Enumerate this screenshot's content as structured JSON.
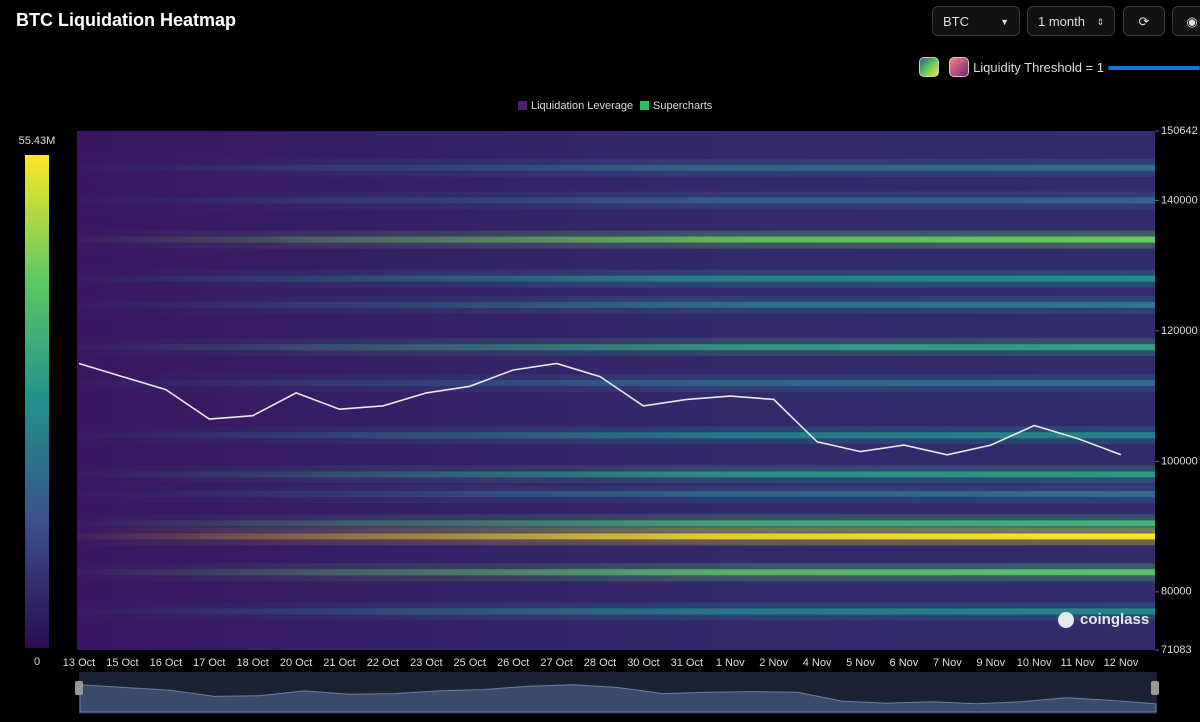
{
  "header": {
    "title": "BTC Liquidation Heatmap",
    "symbol": "BTC",
    "range": "1 month",
    "threshold_label": "Liquidity Threshold = 1",
    "watermark": "coinglass"
  },
  "chart_data": {
    "type": "heatmap",
    "legend": [
      {
        "name": "Liquidation Leverage",
        "color": "#4b1f6f"
      },
      {
        "name": "Supercharts",
        "color": "#22c55e"
      }
    ],
    "colorbar": {
      "min": 0,
      "max": {
        "value": 55430000,
        "label": "55.43M"
      },
      "colors": [
        "#2a0c4e",
        "#3b4f8a",
        "#21918c",
        "#5ec962",
        "#fde725"
      ]
    },
    "categories": [
      "13 Oct",
      "15 Oct",
      "16 Oct",
      "17 Oct",
      "18 Oct",
      "20 Oct",
      "21 Oct",
      "22 Oct",
      "23 Oct",
      "25 Oct",
      "26 Oct",
      "27 Oct",
      "28 Oct",
      "30 Oct",
      "31 Oct",
      "1 Nov",
      "2 Nov",
      "4 Nov",
      "5 Nov",
      "6 Nov",
      "7 Nov",
      "9 Nov",
      "10 Nov",
      "11 Nov",
      "12 Nov"
    ],
    "ylim": [
      71083,
      150642
    ],
    "yticks": [
      71083,
      80000,
      100000,
      120000,
      140000,
      150642
    ],
    "bands": {
      "levels": [
        145000,
        140000,
        134000,
        128000,
        124000,
        117500,
        112000,
        104000,
        98000,
        95000,
        90500,
        88500,
        83000,
        77000
      ],
      "values": [
        20000000,
        18000000,
        42000000,
        27000000,
        22000000,
        32000000,
        20000000,
        25000000,
        30000000,
        20000000,
        36000000,
        55000000,
        40000000,
        25000000
      ]
    },
    "price": {
      "color": "#e8e8e8",
      "values": [
        115000,
        113000,
        111000,
        106500,
        107000,
        110500,
        108000,
        108500,
        110500,
        111500,
        114000,
        115000,
        113000,
        108500,
        109500,
        110000,
        109500,
        103000,
        101500,
        102500,
        101000,
        102500,
        105500,
        103500,
        101000
      ]
    }
  }
}
